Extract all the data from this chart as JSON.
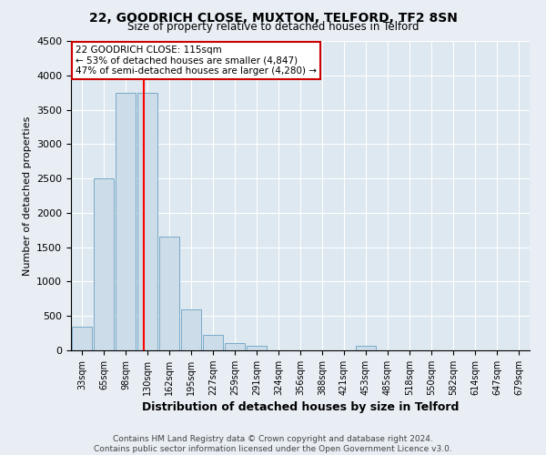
{
  "title": "22, GOODRICH CLOSE, MUXTON, TELFORD, TF2 8SN",
  "subtitle": "Size of property relative to detached houses in Telford",
  "xlabel": "Distribution of detached houses by size in Telford",
  "ylabel": "Number of detached properties",
  "categories": [
    "33sqm",
    "65sqm",
    "98sqm",
    "130sqm",
    "162sqm",
    "195sqm",
    "227sqm",
    "259sqm",
    "291sqm",
    "324sqm",
    "356sqm",
    "388sqm",
    "421sqm",
    "453sqm",
    "485sqm",
    "518sqm",
    "550sqm",
    "582sqm",
    "614sqm",
    "647sqm",
    "679sqm"
  ],
  "values": [
    350,
    2500,
    3750,
    3750,
    1650,
    600,
    225,
    100,
    60,
    0,
    0,
    0,
    0,
    60,
    0,
    0,
    0,
    0,
    0,
    0,
    0
  ],
  "bar_color": "#ccdce8",
  "bar_edge_color": "#7aaac8",
  "red_line_x": 2.85,
  "annotation_text": "22 GOODRICH CLOSE: 115sqm\n← 53% of detached houses are smaller (4,847)\n47% of semi-detached houses are larger (4,280) →",
  "annotation_box_color": "#ffffff",
  "annotation_box_edge": "#cc0000",
  "ylim": [
    0,
    4500
  ],
  "background_color": "#dde8f0",
  "plot_bg_color": "#dce8f2",
  "grid_color": "#ffffff",
  "footer_text": "Contains HM Land Registry data © Crown copyright and database right 2024.\nContains public sector information licensed under the Open Government Licence v3.0."
}
